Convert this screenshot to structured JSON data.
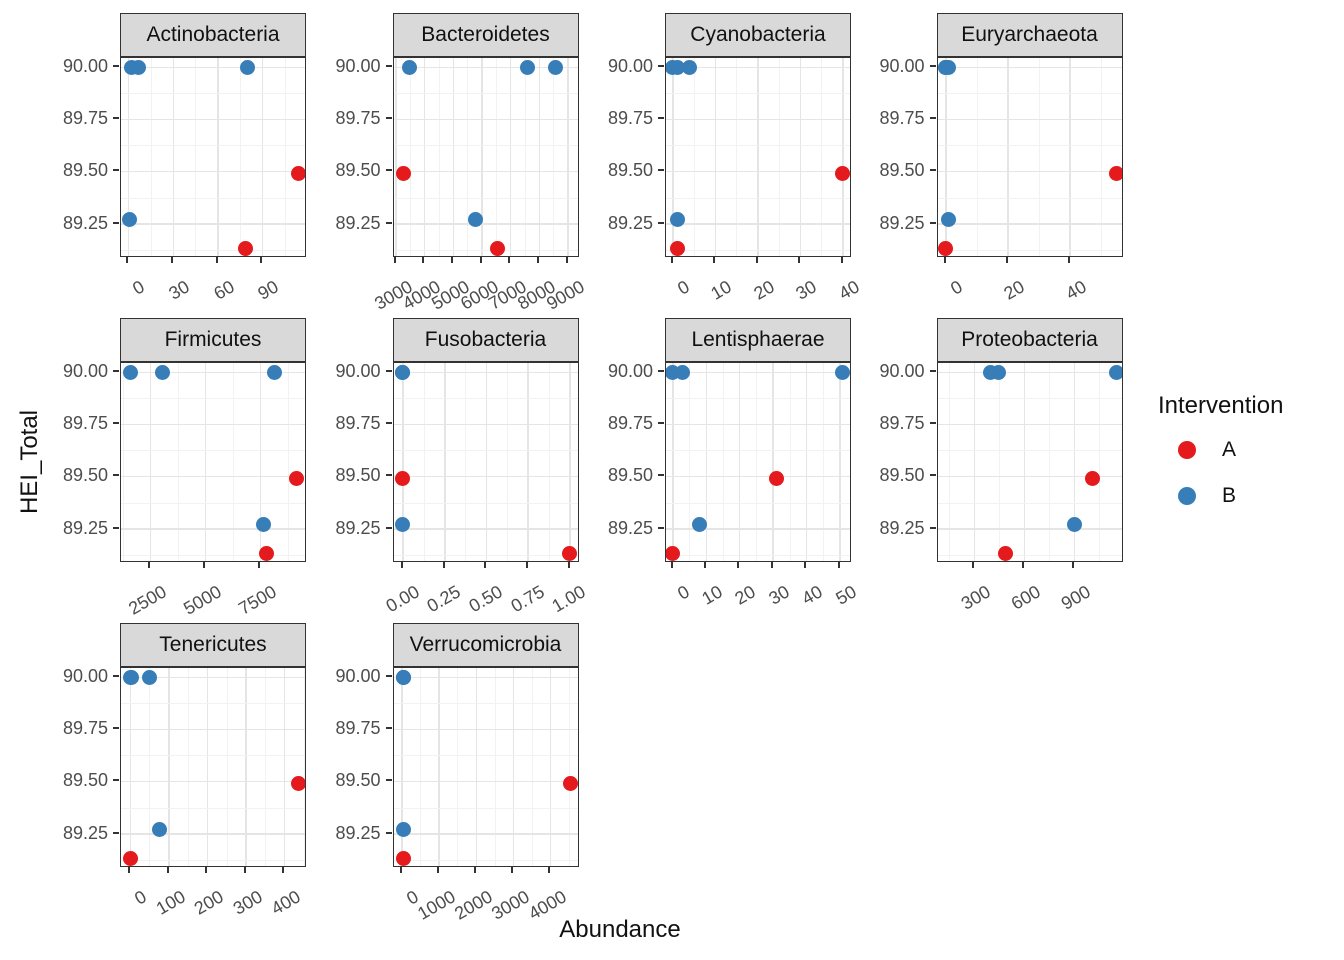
{
  "figure": {
    "x_axis_title": "Abundance",
    "y_axis_title": "HEI_Total"
  },
  "legend": {
    "title": "Intervention",
    "items": [
      {
        "label": "A",
        "color": "#E41A1C"
      },
      {
        "label": "B",
        "color": "#377EB8"
      }
    ]
  },
  "colors": {
    "point_a": "#E41A1C",
    "point_b": "#377EB8",
    "strip_background": "#D9D9D9",
    "panel_border": "#333333",
    "grid_major": "#E5E5E5",
    "grid_minor": "#F2F2F2",
    "tick_text": "#4D4D4D"
  },
  "chart_data": {
    "type": "scatter",
    "title": "",
    "xlabel": "Abundance",
    "ylabel": "HEI_Total",
    "legend_title": "Intervention",
    "legend_position": "right",
    "grid": true,
    "facet_variable": "Phylum",
    "series_colors": {
      "A": "#E41A1C",
      "B": "#377EB8"
    },
    "y_tick_labels": [
      "90.00",
      "89.75",
      "89.50",
      "89.25"
    ],
    "y_ticks": [
      90.0,
      89.75,
      89.5,
      89.25
    ],
    "y_domain": [
      89.085,
      90.044
    ],
    "facets": [
      {
        "title": "Actinobacteria",
        "x_tick_labels": [
          "0",
          "30",
          "60",
          "90"
        ],
        "x_ticks": [
          0,
          30,
          60,
          90
        ],
        "x_domain": [
          -5,
          120
        ],
        "points": [
          {
            "x": 2,
            "y": 90.0,
            "group": "B"
          },
          {
            "x": 7,
            "y": 90.0,
            "group": "B"
          },
          {
            "x": 80,
            "y": 90.0,
            "group": "B"
          },
          {
            "x": 1,
            "y": 89.27,
            "group": "B"
          },
          {
            "x": 114,
            "y": 89.49,
            "group": "A"
          },
          {
            "x": 79,
            "y": 89.13,
            "group": "A"
          }
        ]
      },
      {
        "title": "Bacteroidetes",
        "x_tick_labels": [
          "3000",
          "4000",
          "5000",
          "6000",
          "7000",
          "8000",
          "9000"
        ],
        "x_ticks": [
          3000,
          4000,
          5000,
          6000,
          7000,
          8000,
          9000
        ],
        "x_domain": [
          2920,
          9410
        ],
        "points": [
          {
            "x": 3480,
            "y": 90.0,
            "group": "B"
          },
          {
            "x": 7580,
            "y": 90.0,
            "group": "B"
          },
          {
            "x": 8580,
            "y": 90.0,
            "group": "B"
          },
          {
            "x": 5770,
            "y": 89.27,
            "group": "B"
          },
          {
            "x": 3270,
            "y": 89.49,
            "group": "A"
          },
          {
            "x": 6550,
            "y": 89.13,
            "group": "A"
          }
        ]
      },
      {
        "title": "Cyanobacteria",
        "x_tick_labels": [
          "0",
          "10",
          "20",
          "30",
          "40"
        ],
        "x_ticks": [
          0,
          10,
          20,
          30,
          40
        ],
        "x_domain": [
          -1.6,
          42.2
        ],
        "points": [
          {
            "x": 0,
            "y": 90.0,
            "group": "B"
          },
          {
            "x": 1,
            "y": 90.0,
            "group": "B"
          },
          {
            "x": 4,
            "y": 90.0,
            "group": "B"
          },
          {
            "x": 1,
            "y": 89.27,
            "group": "B"
          },
          {
            "x": 40,
            "y": 89.49,
            "group": "A"
          },
          {
            "x": 1,
            "y": 89.13,
            "group": "A"
          }
        ]
      },
      {
        "title": "Euryarchaeota",
        "x_tick_labels": [
          "0",
          "20",
          "40"
        ],
        "x_ticks": [
          0,
          20,
          40
        ],
        "x_domain": [
          -2.7,
          57.4
        ],
        "points": [
          {
            "x": 0,
            "y": 90.0,
            "group": "B"
          },
          {
            "x": 0,
            "y": 90.0,
            "group": "B"
          },
          {
            "x": 1,
            "y": 90.0,
            "group": "B"
          },
          {
            "x": 1,
            "y": 89.27,
            "group": "B"
          },
          {
            "x": 55,
            "y": 89.49,
            "group": "A"
          },
          {
            "x": 0,
            "y": 89.13,
            "group": "A"
          }
        ]
      },
      {
        "title": "Firmicutes",
        "x_tick_labels": [
          "2500",
          "5000",
          "7500"
        ],
        "x_ticks": [
          2500,
          5000,
          7500
        ],
        "x_domain": [
          1175,
          9620
        ],
        "points": [
          {
            "x": 1600,
            "y": 90.0,
            "group": "B"
          },
          {
            "x": 3060,
            "y": 90.0,
            "group": "B"
          },
          {
            "x": 8140,
            "y": 90.0,
            "group": "B"
          },
          {
            "x": 7650,
            "y": 89.27,
            "group": "B"
          },
          {
            "x": 9160,
            "y": 89.49,
            "group": "A"
          },
          {
            "x": 7770,
            "y": 89.13,
            "group": "A"
          }
        ]
      },
      {
        "title": "Fusobacteria",
        "x_tick_labels": [
          "0.00",
          "0.25",
          "0.50",
          "0.75",
          "1.00"
        ],
        "x_ticks": [
          0,
          0.25,
          0.5,
          0.75,
          1
        ],
        "x_domain": [
          -0.056,
          1.06
        ],
        "points": [
          {
            "x": 0,
            "y": 90.0,
            "group": "B"
          },
          {
            "x": 0,
            "y": 90.0,
            "group": "B"
          },
          {
            "x": 0,
            "y": 90.0,
            "group": "B"
          },
          {
            "x": 0,
            "y": 89.27,
            "group": "B"
          },
          {
            "x": 0,
            "y": 89.49,
            "group": "A"
          },
          {
            "x": 1,
            "y": 89.13,
            "group": "A"
          }
        ]
      },
      {
        "title": "Lentisphaerae",
        "x_tick_labels": [
          "0",
          "10",
          "20",
          "30",
          "40",
          "50"
        ],
        "x_ticks": [
          0,
          10,
          20,
          30,
          40,
          50
        ],
        "x_domain": [
          -2,
          53.7
        ],
        "points": [
          {
            "x": 0,
            "y": 90.0,
            "group": "B"
          },
          {
            "x": 3,
            "y": 90.0,
            "group": "B"
          },
          {
            "x": 51,
            "y": 90.0,
            "group": "B"
          },
          {
            "x": 8,
            "y": 89.27,
            "group": "B"
          },
          {
            "x": 31,
            "y": 89.49,
            "group": "A"
          },
          {
            "x": 0,
            "y": 89.13,
            "group": "A"
          }
        ]
      },
      {
        "title": "Proteobacteria",
        "x_tick_labels": [
          "300",
          "600",
          "900"
        ],
        "x_ticks": [
          300,
          600,
          900
        ],
        "x_domain": [
          80,
          1195
        ],
        "points": [
          {
            "x": 400,
            "y": 90.0,
            "group": "B"
          },
          {
            "x": 445,
            "y": 90.0,
            "group": "B"
          },
          {
            "x": 1155,
            "y": 90.0,
            "group": "B"
          },
          {
            "x": 900,
            "y": 89.27,
            "group": "B"
          },
          {
            "x": 1010,
            "y": 89.49,
            "group": "A"
          },
          {
            "x": 485,
            "y": 89.13,
            "group": "A"
          }
        ]
      },
      {
        "title": "Tenericutes",
        "x_tick_labels": [
          "0",
          "100",
          "200",
          "300",
          "400"
        ],
        "x_ticks": [
          0,
          100,
          200,
          300,
          400
        ],
        "x_domain": [
          -24,
          459
        ],
        "points": [
          {
            "x": 0,
            "y": 90.0,
            "group": "B"
          },
          {
            "x": 2,
            "y": 90.0,
            "group": "B"
          },
          {
            "x": 50,
            "y": 90.0,
            "group": "B"
          },
          {
            "x": 75,
            "y": 89.27,
            "group": "B"
          },
          {
            "x": 436,
            "y": 89.49,
            "group": "A"
          },
          {
            "x": 0,
            "y": 89.13,
            "group": "A"
          }
        ]
      },
      {
        "title": "Verrucomicrobia",
        "x_tick_labels": [
          "0",
          "1000",
          "2000",
          "3000",
          "4000"
        ],
        "x_ticks": [
          0,
          1000,
          2000,
          3000,
          4000
        ],
        "x_domain": [
          -225,
          4790
        ],
        "points": [
          {
            "x": 45,
            "y": 90.0,
            "group": "B"
          },
          {
            "x": 45,
            "y": 90.0,
            "group": "B"
          },
          {
            "x": 45,
            "y": 90.0,
            "group": "B"
          },
          {
            "x": 50,
            "y": 89.27,
            "group": "B"
          },
          {
            "x": 4550,
            "y": 89.49,
            "group": "A"
          },
          {
            "x": 45,
            "y": 89.13,
            "group": "A"
          }
        ]
      }
    ]
  }
}
